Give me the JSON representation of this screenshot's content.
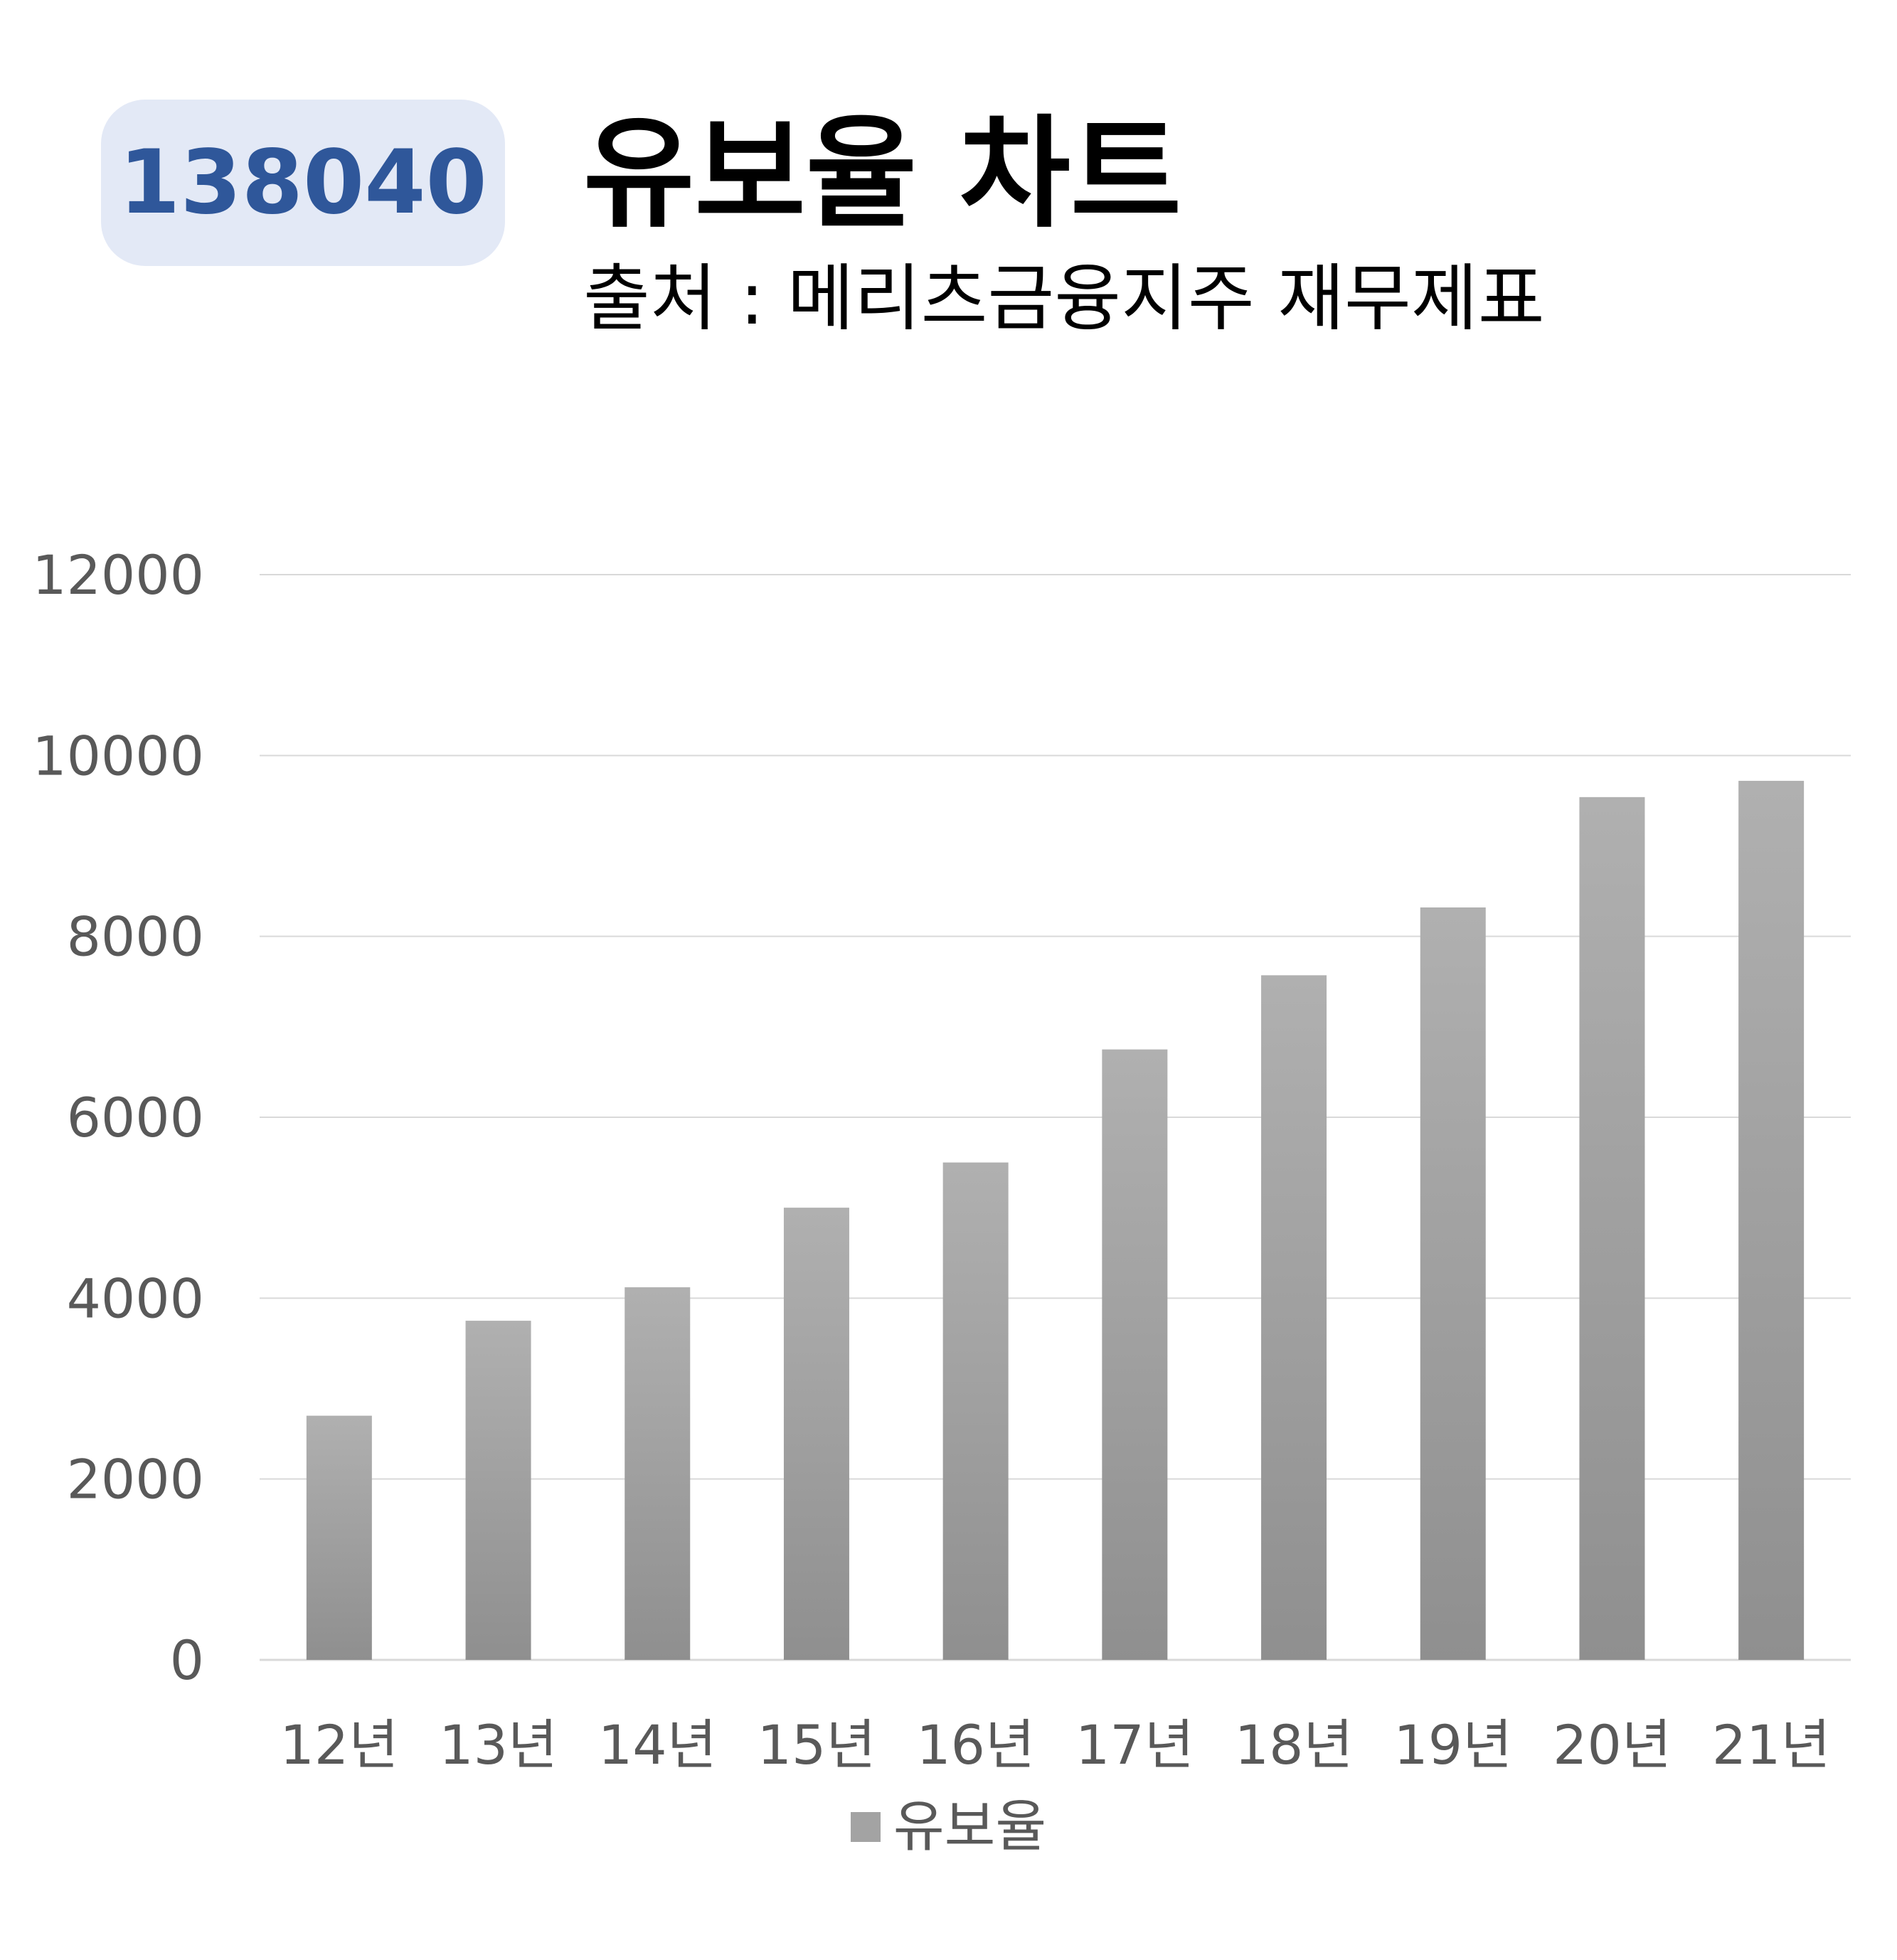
{
  "header": {
    "code": "138040",
    "title": "유보율 차트",
    "subtitle": "출처 : 메리츠금융지주 재무제표"
  },
  "colors": {
    "badge_bg": "#e3e9f6",
    "badge_text": "#2f579a",
    "bar_top": "#b0b0b0",
    "bar_bottom": "#8f8f8f",
    "grid": "#d9d9d9",
    "axis_text": "#595959"
  },
  "chart_data": {
    "type": "bar",
    "categories": [
      "12년",
      "13년",
      "14년",
      "15년",
      "16년",
      "17년",
      "18년",
      "19년",
      "20년",
      "21년"
    ],
    "series": [
      {
        "name": "유보율",
        "values": [
          2700,
          3750,
          4120,
          5000,
          5500,
          6750,
          7570,
          8320,
          9540,
          9720
        ]
      }
    ],
    "y_ticks": [
      "0",
      "2000",
      "4000",
      "6000",
      "8000",
      "10000",
      "12000"
    ],
    "ylim": [
      0,
      12000
    ],
    "grid": true,
    "legend": "bottom-center"
  }
}
